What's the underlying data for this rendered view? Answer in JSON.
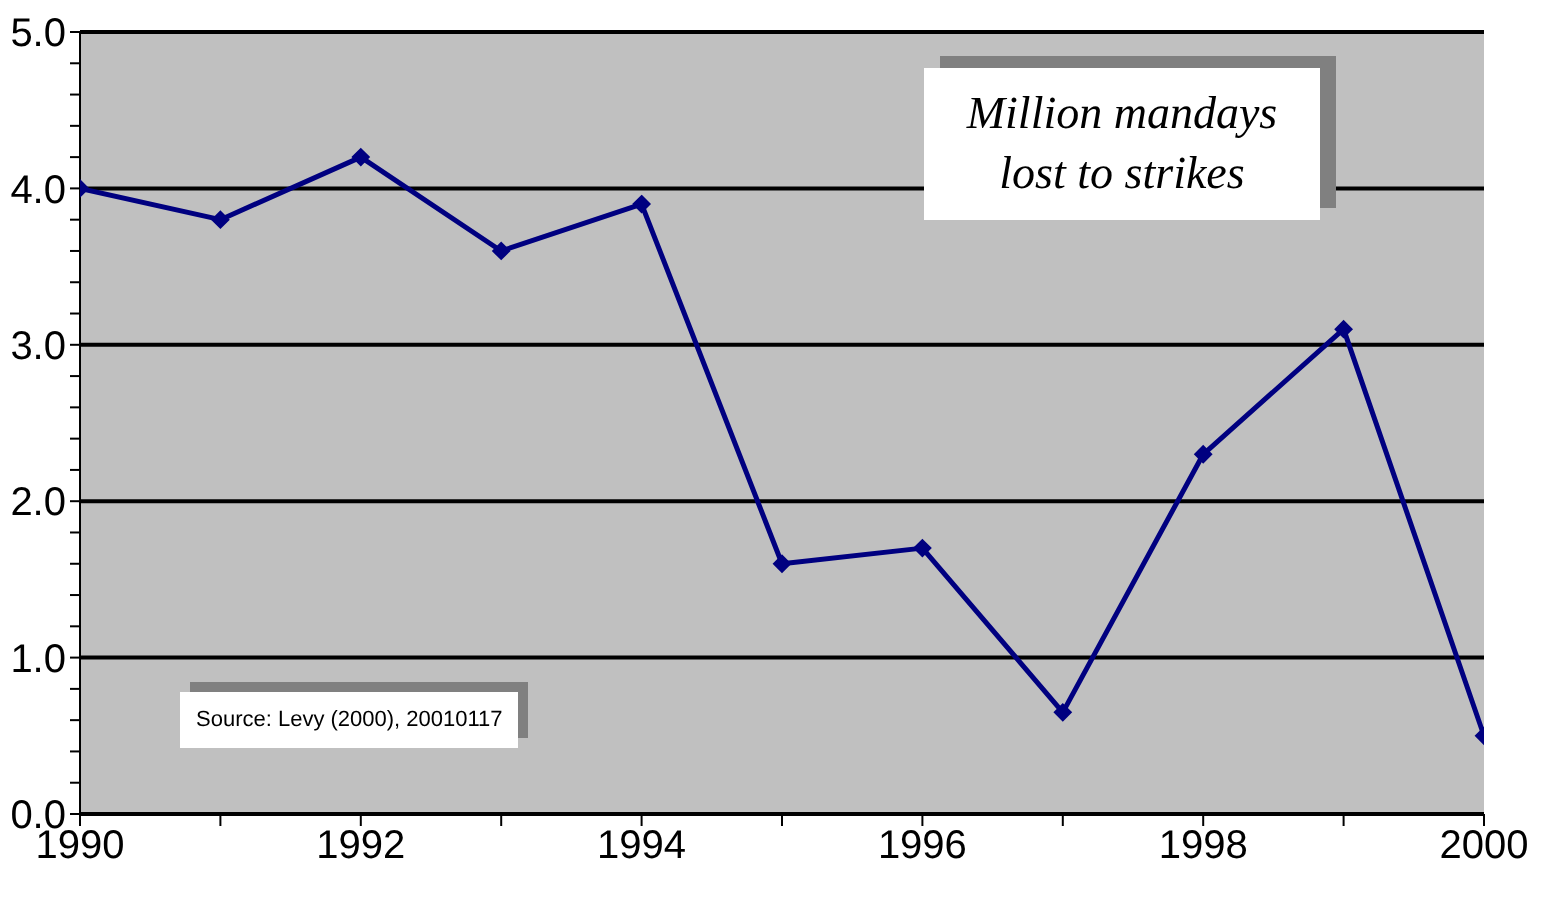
{
  "chart_data": {
    "type": "line",
    "title": "Million mandays lost to strikes",
    "x": [
      1990,
      1991,
      1992,
      1993,
      1994,
      1995,
      1996,
      1997,
      1998,
      1999,
      2000
    ],
    "series": [
      {
        "color": "#000080",
        "values": [
          4.0,
          3.8,
          4.2,
          3.6,
          3.9,
          1.6,
          1.7,
          0.65,
          2.3,
          3.1,
          0.5
        ]
      }
    ],
    "xlim": [
      1990,
      2000
    ],
    "xticks": [
      1990,
      {
        "value": 1991,
        "label": null
      },
      1992,
      {
        "value": 1993,
        "label": null
      },
      1994,
      {
        "value": 1995,
        "label": null
      },
      1996,
      {
        "value": 1997,
        "label": null
      },
      1998,
      {
        "value": 1999,
        "label": null
      },
      2000
    ],
    "ylim": [
      0,
      5
    ],
    "yticks": [
      {
        "value": 0,
        "label": "0.0"
      },
      {
        "value": 0.2,
        "label": null
      },
      {
        "value": 0.4,
        "label": null
      },
      {
        "value": 0.6,
        "label": null
      },
      {
        "value": 0.8,
        "label": null
      },
      {
        "value": 1,
        "label": "1.0"
      },
      {
        "value": 1.2,
        "label": null
      },
      {
        "value": 1.4,
        "label": null
      },
      {
        "value": 1.6,
        "label": null
      },
      {
        "value": 1.8,
        "label": null
      },
      {
        "value": 2,
        "label": "2.0"
      },
      {
        "value": 2.2,
        "label": null
      },
      {
        "value": 2.4,
        "label": null
      },
      {
        "value": 2.6,
        "label": null
      },
      {
        "value": 2.8,
        "label": null
      },
      {
        "value": 3,
        "label": "3.0"
      },
      {
        "value": 3.2,
        "label": null
      },
      {
        "value": 3.4,
        "label": null
      },
      {
        "value": 3.6,
        "label": null
      },
      {
        "value": 3.8,
        "label": null
      },
      {
        "value": 4,
        "label": "4.0"
      },
      {
        "value": 4.2,
        "label": null
      },
      {
        "value": 4.4,
        "label": null
      },
      {
        "value": 4.6,
        "label": null
      },
      {
        "value": 4.8,
        "label": null
      },
      {
        "value": 5,
        "label": "5.0"
      }
    ],
    "grid": "y",
    "marker": "diamond",
    "line_style": "solid",
    "legend": false,
    "annotations": [
      "Source: Levy (2000), 20010117"
    ]
  }
}
